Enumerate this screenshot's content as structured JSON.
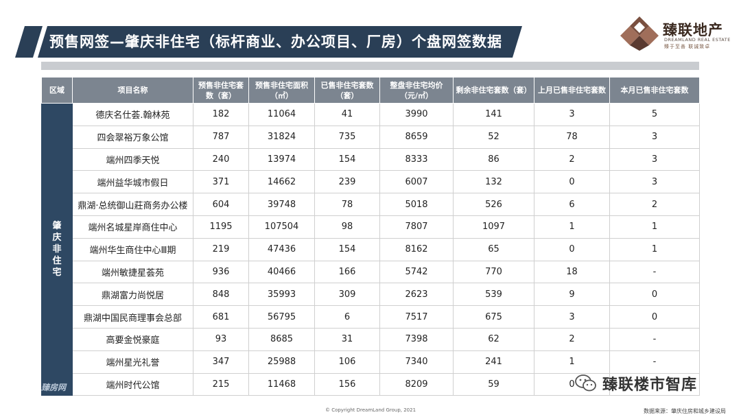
{
  "title": "预售网签—肇庆非住宅（标杆商业、办公项目、厂房）个盘网签数据",
  "logo": {
    "name_cn": "臻联地产",
    "name_en": "DREAMLAND REAL ESTATE",
    "tagline": "臻于至善  联诚致卓"
  },
  "colors": {
    "title_bar": "#2a3f56",
    "header_bg": "#7c8590",
    "region_bg": "#2e4863"
  },
  "table": {
    "headers": [
      "区域",
      "项目名称",
      "预售非住宅套数（套）",
      "预售非住宅面积（㎡）",
      "已售非住宅套数（套）",
      "整盘非住宅均价（元/㎡）",
      "剩余非住宅套数（套）",
      "上月已售非住宅套数",
      "本月已售非住宅套数"
    ],
    "region": "肇庆非住宅",
    "rows": [
      [
        "德庆名仕荟.翰林苑",
        "182",
        "11064",
        "41",
        "3990",
        "141",
        "3",
        "5"
      ],
      [
        "四会翠裕万象公馆",
        "787",
        "31824",
        "735",
        "8659",
        "52",
        "78",
        "3"
      ],
      [
        "端州四季天悦",
        "240",
        "13974",
        "154",
        "8333",
        "86",
        "2",
        "3"
      ],
      [
        "端州益华城市假日",
        "371",
        "14662",
        "239",
        "6007",
        "132",
        "0",
        "3"
      ],
      [
        "鼎湖·总统御山莊商务办公楼",
        "604",
        "39748",
        "78",
        "5018",
        "526",
        "6",
        "2"
      ],
      [
        "端州名城星岸商住中心",
        "1195",
        "107504",
        "98",
        "7807",
        "1097",
        "1",
        "1"
      ],
      [
        "端州华生商住中心Ⅲ期",
        "219",
        "47436",
        "154",
        "8162",
        "65",
        "0",
        "1"
      ],
      [
        "端州敏捷星荟苑",
        "936",
        "40466",
        "166",
        "5742",
        "770",
        "18",
        "-"
      ],
      [
        "鼎湖富力尚悦居",
        "848",
        "35993",
        "309",
        "2623",
        "539",
        "9",
        "0"
      ],
      [
        "鼎湖中国民商理事会总部",
        "681",
        "56795",
        "6",
        "7517",
        "675",
        "3",
        "0"
      ],
      [
        "高要金悦豪庭",
        "93",
        "8685",
        "31",
        "7398",
        "62",
        "2",
        "-"
      ],
      [
        "端州星光礼誉",
        "347",
        "25988",
        "106",
        "7340",
        "241",
        "1",
        "-"
      ],
      [
        "端州时代公馆",
        "215",
        "11468",
        "156",
        "8209",
        "59",
        "0",
        ""
      ]
    ]
  },
  "footer": {
    "copyright": "© Copyright  DreamLand Group, 2021",
    "source": "数据来源：肇庆住房和城乡建设局"
  },
  "watermark": {
    "wechat": "臻联楼市智库",
    "corner": "臻房网"
  }
}
